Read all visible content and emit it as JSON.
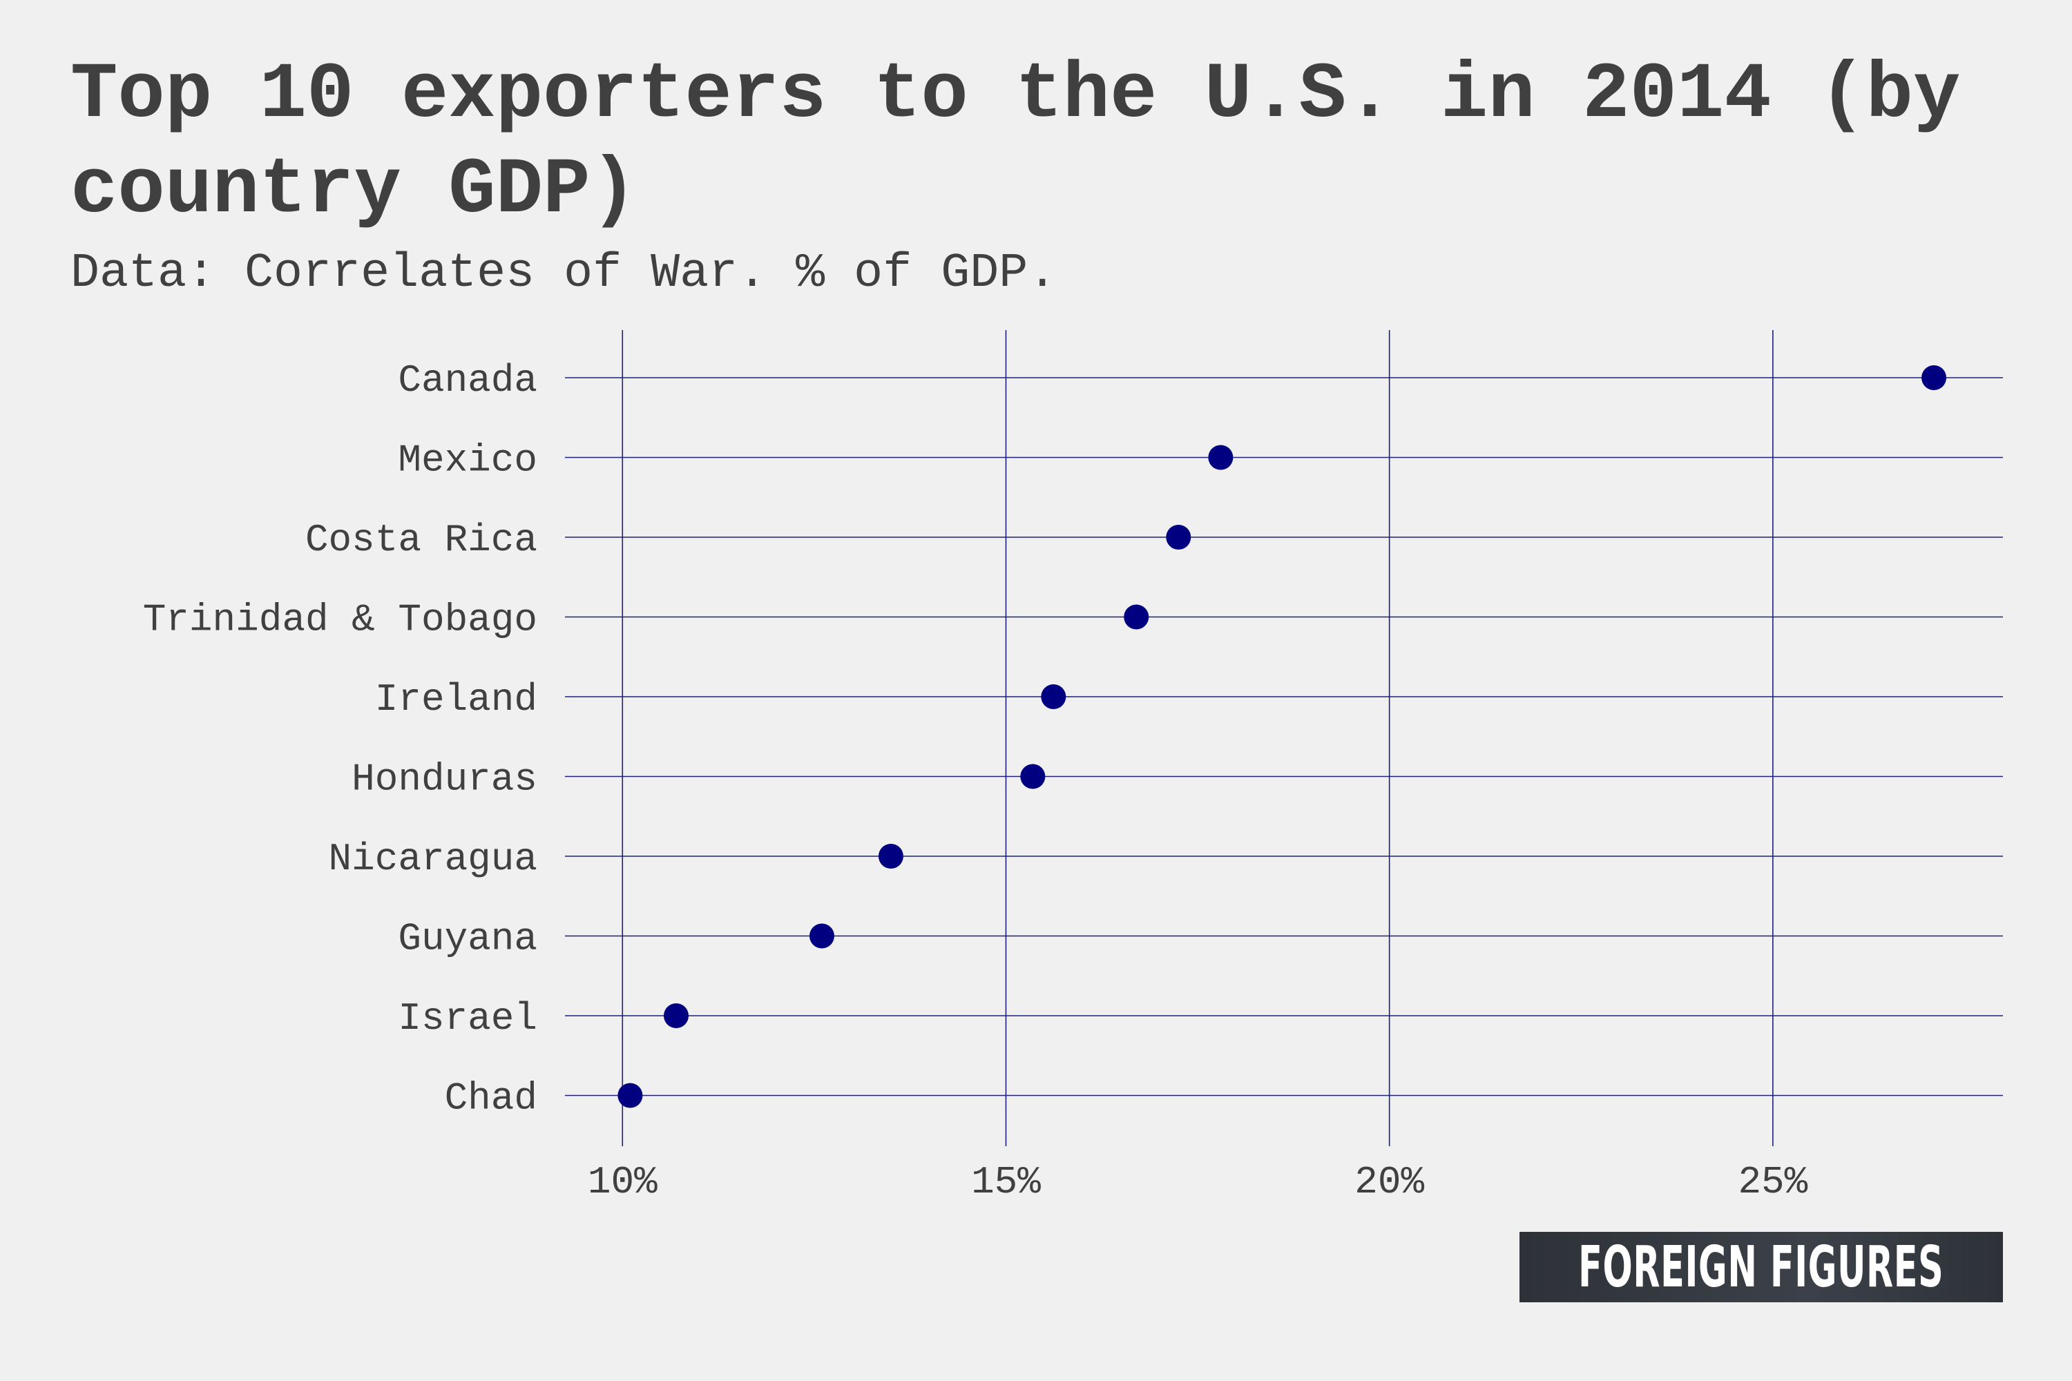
{
  "chart_data": {
    "type": "scatter",
    "title": "Top 10 exporters to the U.S. in 2014 (by country GDP)",
    "subtitle": "Data: Correlates of War. % of GDP.",
    "categories": [
      "Canada",
      "Mexico",
      "Costa Rica",
      "Trinidad & Tobago",
      "Ireland",
      "Honduras",
      "Nicaragua",
      "Guyana",
      "Israel",
      "Chad"
    ],
    "series": [
      {
        "values": [
          27.1,
          17.8,
          17.25,
          16.7,
          15.62,
          15.35,
          13.5,
          12.6,
          10.7,
          10.1
        ]
      }
    ],
    "xlim": [
      9.25,
      28.0
    ],
    "xticks": [
      10,
      15,
      20,
      25
    ],
    "xtick_labels": [
      "10%",
      "15%",
      "20%",
      "25%"
    ],
    "xlabel": "",
    "ylabel": "",
    "grid": true,
    "colors": {
      "point": "#000080",
      "grid": "#1f1f7a",
      "text": "#404040",
      "background": "#f0f0f0"
    }
  },
  "logo": {
    "text": "FOREIGN FIGURES"
  }
}
